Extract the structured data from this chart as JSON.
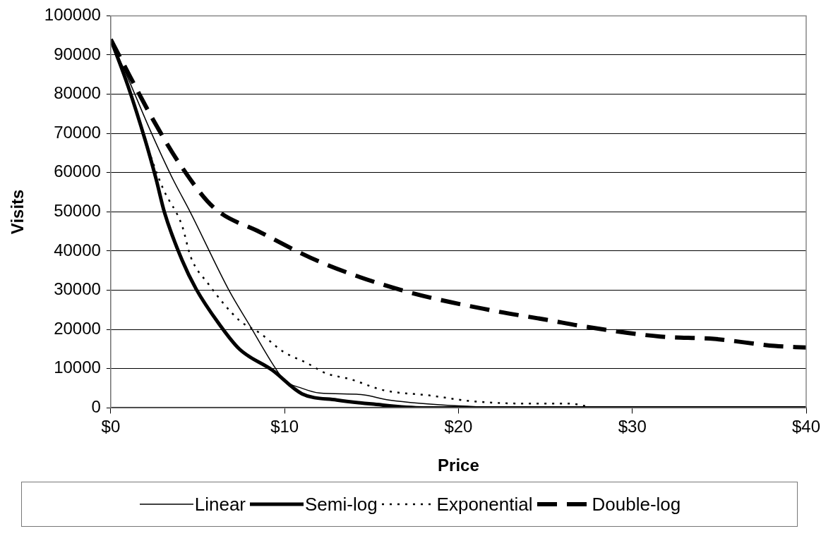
{
  "chart_data": {
    "type": "line",
    "xlabel": "Price",
    "ylabel": "Visits",
    "xlim": [
      0,
      40
    ],
    "xticks": [
      {
        "value": 0,
        "label": "$0"
      },
      {
        "value": 10,
        "label": "$10"
      },
      {
        "value": 20,
        "label": "$20"
      },
      {
        "value": 30,
        "label": "$30"
      },
      {
        "value": 40,
        "label": "$40"
      }
    ],
    "ylim": [
      0,
      100000
    ],
    "yticks": [
      0,
      10000,
      20000,
      30000,
      40000,
      50000,
      60000,
      70000,
      80000,
      90000,
      100000
    ],
    "grid": "y",
    "legend": "bottom",
    "marker": "none",
    "series": [
      {
        "name": "Linear",
        "color": "#000000",
        "line_style": "solid",
        "x": [
          0,
          1,
          2.3,
          3.5,
          4.6,
          6.8,
          8,
          9.3,
          10,
          11,
          12,
          14.4,
          16,
          20,
          25,
          30,
          40
        ],
        "values": [
          94000,
          84000,
          70500,
          59000,
          49700,
          30000,
          21000,
          11300,
          7000,
          5000,
          3800,
          3400,
          2000,
          500,
          0,
          0,
          0
        ]
      },
      {
        "name": "Semi-log",
        "color": "#000000",
        "line_style": "solid",
        "x": [
          0,
          1,
          2,
          2.6,
          3.1,
          4.1,
          4.9,
          6.2,
          7.4,
          9.3,
          11,
          13,
          15,
          18,
          20,
          30,
          40
        ],
        "values": [
          94000,
          82000,
          68000,
          58500,
          49700,
          37700,
          30400,
          21600,
          15000,
          9600,
          3600,
          2000,
          1000,
          0,
          0,
          0,
          0
        ]
      },
      {
        "name": "Exponential",
        "color": "#000000",
        "line_style": "dotted",
        "x": [
          0,
          1,
          2,
          3,
          4.1,
          4.6,
          5.6,
          7.4,
          8.6,
          9.9,
          11.3,
          12.4,
          13.8,
          15.7,
          18.3,
          20.8,
          23.9,
          26.4,
          28,
          30,
          40
        ],
        "values": [
          94000,
          82000,
          68000,
          56000,
          46500,
          38500,
          31700,
          22300,
          19000,
          14400,
          11400,
          8800,
          7300,
          4500,
          3200,
          1700,
          1100,
          1100,
          0,
          0,
          0
        ]
      },
      {
        "name": "Double-log",
        "color": "#000000",
        "line_style": "dashed",
        "x": [
          0,
          1.1,
          2.5,
          4,
          5.9,
          8.6,
          12,
          16.9,
          22,
          25.3,
          26.9,
          31.6,
          34.7,
          38.2,
          40
        ],
        "values": [
          94000,
          84600,
          73000,
          62000,
          51200,
          44800,
          37300,
          29800,
          24800,
          22300,
          21000,
          18200,
          17600,
          15800,
          15400
        ]
      }
    ]
  }
}
